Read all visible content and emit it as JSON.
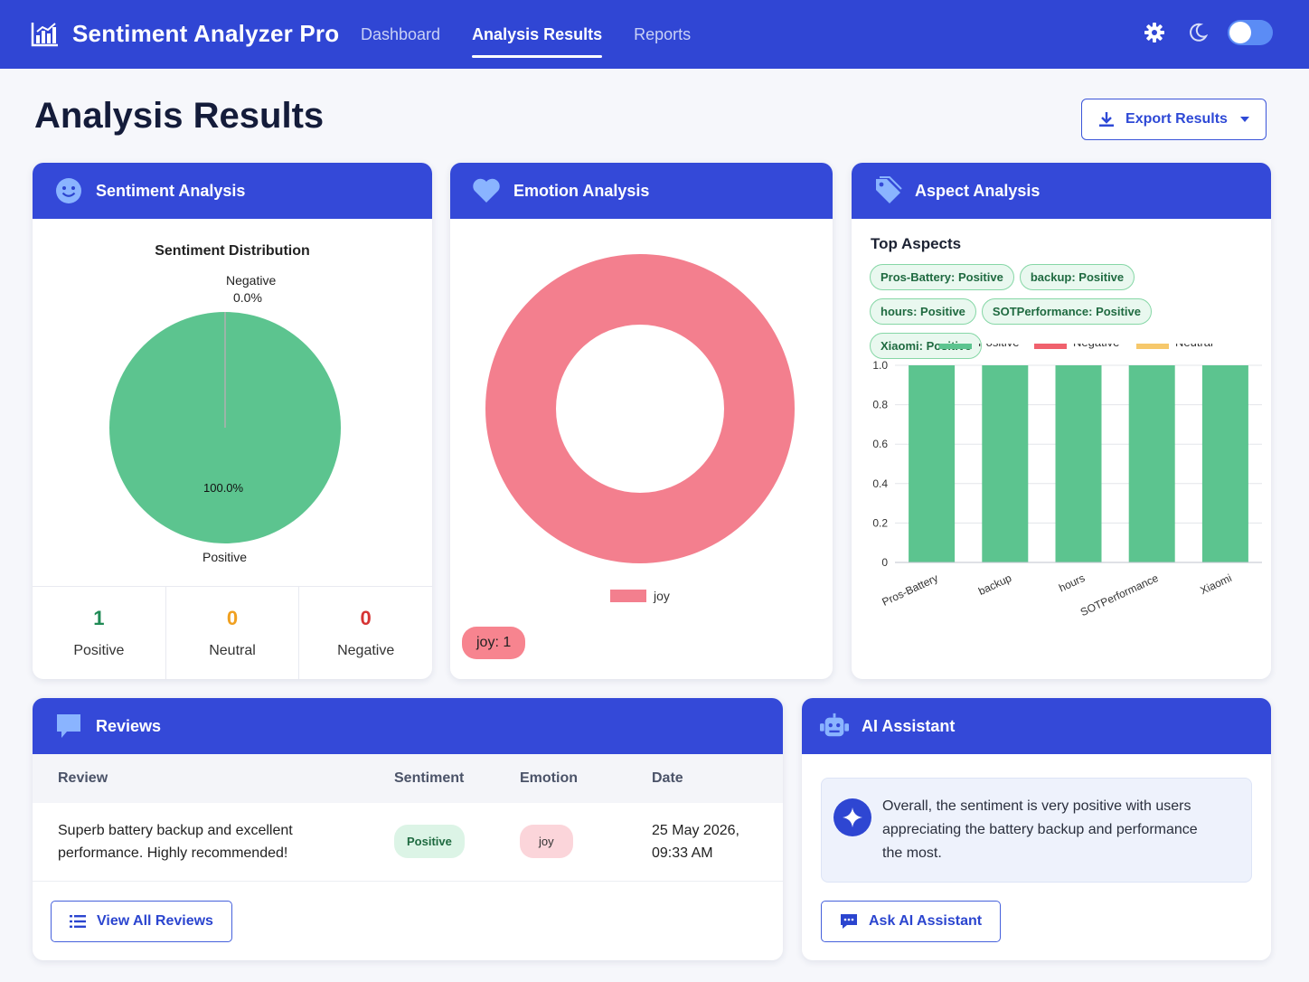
{
  "app": {
    "title": "Sentiment Analyzer Pro",
    "nav": [
      "Dashboard",
      "Analysis Results",
      "Reports"
    ],
    "active_nav": "Analysis Results",
    "accent": "#3046d4"
  },
  "page": {
    "title": "Analysis Results",
    "export_label": "Export Results"
  },
  "sentiment_card": {
    "title": "Sentiment Analysis",
    "chart_title": "Sentiment Distribution",
    "negative_label": "Negative",
    "negative_pct": "0.0%",
    "positive_label": "Positive",
    "positive_pct": "100.0%",
    "stats": [
      {
        "value": "1",
        "label": "Positive",
        "color": "#1f8a55"
      },
      {
        "value": "0",
        "label": "Neutral",
        "color": "#f0a020"
      },
      {
        "value": "0",
        "label": "Negative",
        "color": "#d63333"
      }
    ]
  },
  "emotion_card": {
    "title": "Emotion Analysis",
    "legend_label": "joy",
    "pill": "joy: 1"
  },
  "aspect_card": {
    "title": "Aspect Analysis",
    "top_aspects_title": "Top Aspects",
    "tags": [
      "Pros-Battery: Positive",
      "backup: Positive",
      "hours: Positive",
      "SOTPerformance: Positive",
      "Xiaomi: Positive"
    ]
  },
  "chart_data": [
    {
      "type": "pie",
      "title": "Sentiment Distribution",
      "categories": [
        "Positive",
        "Negative"
      ],
      "values": [
        100.0,
        0.0
      ],
      "colors": [
        "#5cc48f",
        "#b0b0b0"
      ]
    },
    {
      "type": "pie",
      "title": "",
      "categories": [
        "joy"
      ],
      "values": [
        1
      ],
      "colors": [
        "#f37f8e"
      ],
      "donut": true,
      "legend": "bottom"
    },
    {
      "type": "bar",
      "title": "",
      "categories": [
        "Pros-Battery",
        "backup",
        "hours",
        "SOTPerformance",
        "Xiaomi"
      ],
      "series": [
        {
          "name": "Positive",
          "values": [
            1,
            1,
            1,
            1,
            1
          ],
          "color": "#5cc48f"
        },
        {
          "name": "Negative",
          "values": [
            0,
            0,
            0,
            0,
            0
          ],
          "color": "#f0616d"
        },
        {
          "name": "Neutral",
          "values": [
            0,
            0,
            0,
            0,
            0
          ],
          "color": "#f6c86b"
        }
      ],
      "ylim": [
        0,
        1.0
      ],
      "yticks": [
        "0",
        "0.2",
        "0.4",
        "0.6",
        "0.8",
        "1.0"
      ],
      "stacked": true,
      "grid": true,
      "legend": "top"
    }
  ],
  "reviews_card": {
    "title": "Reviews",
    "columns": [
      "Review",
      "Sentiment",
      "Emotion",
      "Date"
    ],
    "rows": [
      {
        "review_line1": "Superb battery backup and excellent",
        "review_line2": "performance. Highly recommended!",
        "sentiment": "Positive",
        "emotion": "joy",
        "date_line1": "25 May 2026,",
        "date_line2": "09:33 AM"
      }
    ],
    "view_all_label": "View All Reviews"
  },
  "ai_card": {
    "title": "AI Assistant",
    "message_line1": "Overall, the sentiment is very positive with users",
    "message_line2": "appreciating the battery backup and performance",
    "message_line3": "the most.",
    "ask_label": "Ask AI Assistant"
  }
}
